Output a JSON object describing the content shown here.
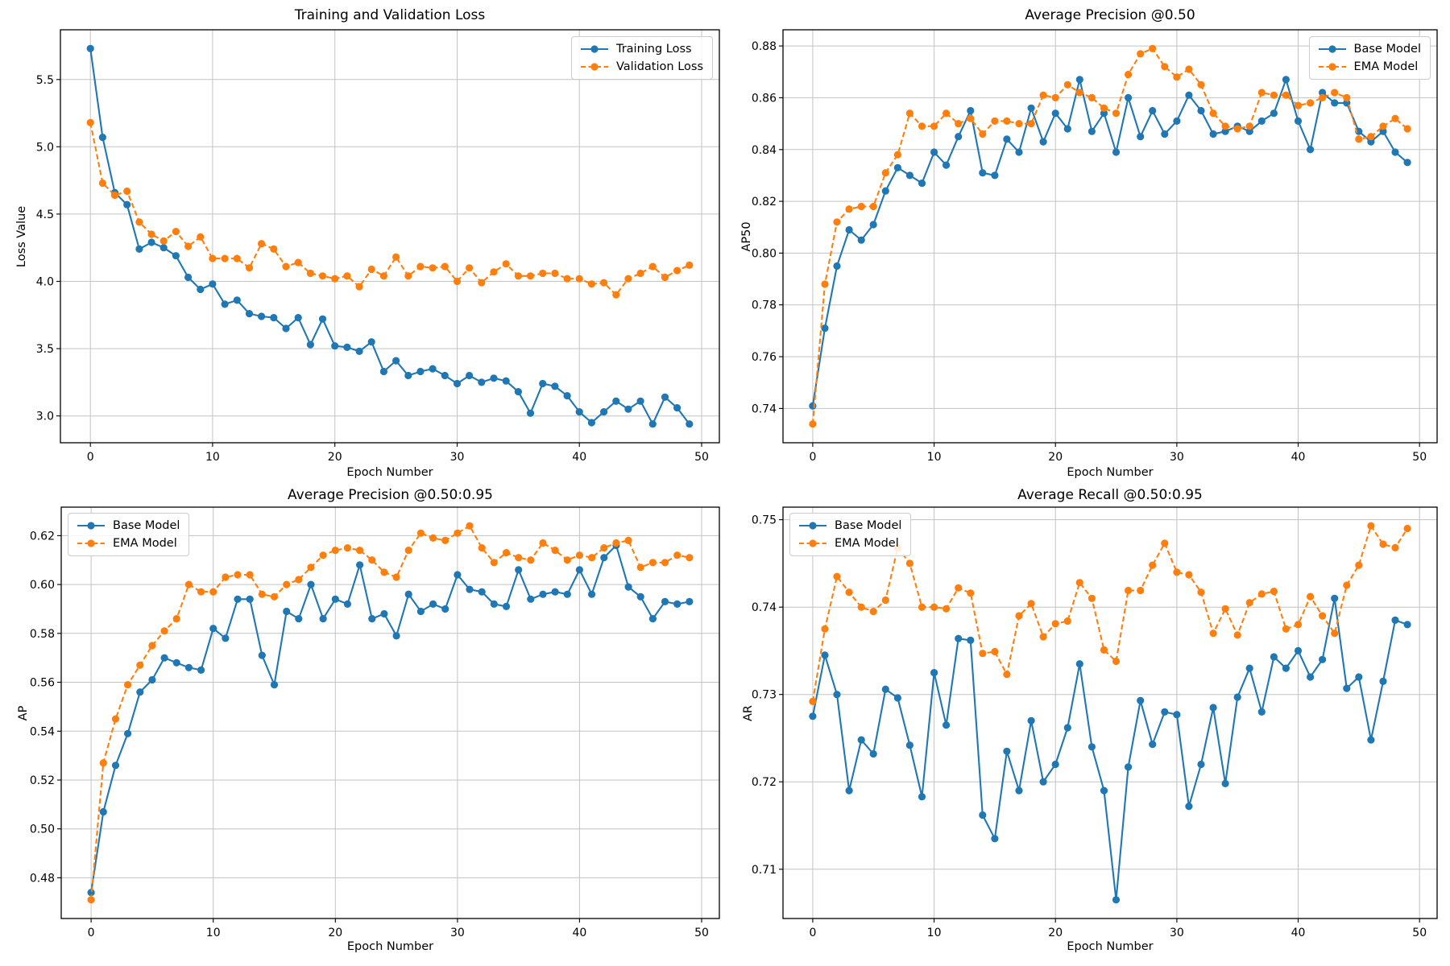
{
  "figure": {
    "background": "#ffffff"
  },
  "epochs": [
    0,
    1,
    2,
    3,
    4,
    5,
    6,
    7,
    8,
    9,
    10,
    11,
    12,
    13,
    14,
    15,
    16,
    17,
    18,
    19,
    20,
    21,
    22,
    23,
    24,
    25,
    26,
    27,
    28,
    29,
    30,
    31,
    32,
    33,
    34,
    35,
    36,
    37,
    38,
    39,
    40,
    41,
    42,
    43,
    44,
    45,
    46,
    47,
    48,
    49
  ],
  "shared": {
    "xtick_labels": [
      "0",
      "10",
      "20",
      "30",
      "40",
      "50"
    ],
    "xticks": [
      0,
      10,
      20,
      30,
      40,
      50
    ],
    "palette": {
      "blue": "#1f77b4",
      "orange": "#ff7f0e"
    }
  },
  "chart_data": [
    {
      "type": "line",
      "title": "Training and Validation Loss",
      "xlabel": "Epoch Number",
      "ylabel": "Loss Value",
      "xlim": [
        -2.45,
        51.45
      ],
      "ylim": [
        2.8005,
        5.8695
      ],
      "xticks": [
        0,
        10,
        20,
        30,
        40,
        50
      ],
      "xtick_labels": [
        "0",
        "10",
        "20",
        "30",
        "40",
        "50"
      ],
      "yticks": [
        3.0,
        3.5,
        4.0,
        4.5,
        5.0,
        5.5
      ],
      "ytick_labels": [
        "3.0",
        "3.5",
        "4.0",
        "4.5",
        "5.0",
        "5.5"
      ],
      "grid": true,
      "legend_position": "upper right",
      "series": [
        {
          "name": "Training Loss",
          "color": "#1f77b4",
          "line_style": "solid",
          "marker": "circle",
          "values": [
            5.73,
            5.07,
            4.66,
            4.57,
            4.24,
            4.29,
            4.25,
            4.19,
            4.03,
            3.94,
            3.98,
            3.83,
            3.86,
            3.76,
            3.74,
            3.73,
            3.65,
            3.73,
            3.53,
            3.72,
            3.52,
            3.51,
            3.48,
            3.55,
            3.33,
            3.41,
            3.3,
            3.33,
            3.35,
            3.3,
            3.24,
            3.3,
            3.25,
            3.28,
            3.26,
            3.18,
            3.02,
            3.24,
            3.22,
            3.15,
            3.03,
            2.95,
            3.03,
            3.11,
            3.05,
            3.11,
            2.94,
            3.14,
            3.06,
            2.94
          ]
        },
        {
          "name": "Validation Loss",
          "color": "#ff7f0e",
          "line_style": "dashed",
          "marker": "circle",
          "values": [
            5.18,
            4.73,
            4.64,
            4.67,
            4.44,
            4.35,
            4.3,
            4.37,
            4.26,
            4.33,
            4.17,
            4.17,
            4.17,
            4.1,
            4.28,
            4.24,
            4.11,
            4.14,
            4.06,
            4.04,
            4.02,
            4.04,
            3.96,
            4.09,
            4.04,
            4.18,
            4.04,
            4.11,
            4.1,
            4.11,
            4.0,
            4.1,
            3.99,
            4.07,
            4.13,
            4.04,
            4.04,
            4.06,
            4.06,
            4.02,
            4.02,
            3.98,
            3.99,
            3.9,
            4.02,
            4.06,
            4.11,
            4.03,
            4.08,
            4.12
          ]
        }
      ]
    },
    {
      "type": "line",
      "title": "Average Precision @0.50",
      "xlabel": "Epoch Number",
      "ylabel": "AP50",
      "xlim": [
        -2.45,
        51.45
      ],
      "ylim": [
        0.72675,
        0.88625
      ],
      "xticks": [
        0,
        10,
        20,
        30,
        40,
        50
      ],
      "xtick_labels": [
        "0",
        "10",
        "20",
        "30",
        "40",
        "50"
      ],
      "yticks": [
        0.74,
        0.76,
        0.78,
        0.8,
        0.82,
        0.84,
        0.86,
        0.88
      ],
      "ytick_labels": [
        "0.74",
        "0.76",
        "0.78",
        "0.80",
        "0.82",
        "0.84",
        "0.86",
        "0.88"
      ],
      "grid": true,
      "legend_position": "upper right",
      "series": [
        {
          "name": "Base Model",
          "color": "#1f77b4",
          "line_style": "solid",
          "marker": "circle",
          "values": [
            0.741,
            0.771,
            0.795,
            0.809,
            0.805,
            0.811,
            0.824,
            0.833,
            0.83,
            0.827,
            0.839,
            0.834,
            0.845,
            0.855,
            0.831,
            0.83,
            0.844,
            0.839,
            0.856,
            0.843,
            0.854,
            0.848,
            0.867,
            0.847,
            0.854,
            0.839,
            0.86,
            0.845,
            0.855,
            0.846,
            0.851,
            0.861,
            0.855,
            0.846,
            0.847,
            0.849,
            0.847,
            0.851,
            0.854,
            0.867,
            0.851,
            0.84,
            0.862,
            0.858,
            0.858,
            0.847,
            0.843,
            0.847,
            0.839,
            0.835
          ]
        },
        {
          "name": "EMA Model",
          "color": "#ff7f0e",
          "line_style": "dashed",
          "marker": "circle",
          "values": [
            0.734,
            0.788,
            0.812,
            0.817,
            0.818,
            0.818,
            0.831,
            0.838,
            0.854,
            0.849,
            0.849,
            0.854,
            0.85,
            0.852,
            0.846,
            0.851,
            0.851,
            0.85,
            0.85,
            0.861,
            0.86,
            0.865,
            0.862,
            0.86,
            0.856,
            0.854,
            0.869,
            0.877,
            0.879,
            0.872,
            0.868,
            0.871,
            0.865,
            0.854,
            0.849,
            0.848,
            0.849,
            0.862,
            0.861,
            0.861,
            0.857,
            0.858,
            0.86,
            0.862,
            0.86,
            0.844,
            0.845,
            0.849,
            0.852,
            0.848
          ]
        }
      ]
    },
    {
      "type": "line",
      "title": "Average Precision @0.50:0.95",
      "xlabel": "Epoch Number",
      "ylabel": "AP",
      "xlim": [
        -2.45,
        51.45
      ],
      "ylim": [
        0.46335,
        0.63165
      ],
      "xticks": [
        0,
        10,
        20,
        30,
        40,
        50
      ],
      "xtick_labels": [
        "0",
        "10",
        "20",
        "30",
        "40",
        "50"
      ],
      "yticks": [
        0.48,
        0.5,
        0.52,
        0.54,
        0.56,
        0.58,
        0.6,
        0.62
      ],
      "ytick_labels": [
        "0.48",
        "0.50",
        "0.52",
        "0.54",
        "0.56",
        "0.58",
        "0.60",
        "0.62"
      ],
      "grid": true,
      "legend_position": "upper left",
      "series": [
        {
          "name": "Base Model",
          "color": "#1f77b4",
          "line_style": "solid",
          "marker": "circle",
          "values": [
            0.474,
            0.507,
            0.526,
            0.539,
            0.556,
            0.561,
            0.57,
            0.568,
            0.566,
            0.565,
            0.582,
            0.578,
            0.594,
            0.594,
            0.571,
            0.559,
            0.589,
            0.586,
            0.6,
            0.586,
            0.594,
            0.592,
            0.608,
            0.586,
            0.588,
            0.579,
            0.596,
            0.589,
            0.592,
            0.59,
            0.604,
            0.598,
            0.597,
            0.592,
            0.591,
            0.606,
            0.594,
            0.596,
            0.597,
            0.596,
            0.606,
            0.596,
            0.611,
            0.616,
            0.599,
            0.595,
            0.586,
            0.593,
            0.592,
            0.593
          ]
        },
        {
          "name": "EMA Model",
          "color": "#ff7f0e",
          "line_style": "dashed",
          "marker": "circle",
          "values": [
            0.471,
            0.527,
            0.545,
            0.559,
            0.567,
            0.575,
            0.581,
            0.586,
            0.6,
            0.597,
            0.597,
            0.603,
            0.604,
            0.604,
            0.596,
            0.595,
            0.6,
            0.602,
            0.607,
            0.612,
            0.614,
            0.615,
            0.614,
            0.61,
            0.605,
            0.603,
            0.614,
            0.621,
            0.619,
            0.618,
            0.621,
            0.624,
            0.615,
            0.609,
            0.613,
            0.611,
            0.61,
            0.617,
            0.614,
            0.61,
            0.612,
            0.611,
            0.615,
            0.617,
            0.618,
            0.607,
            0.609,
            0.609,
            0.612,
            0.611
          ]
        }
      ]
    },
    {
      "type": "line",
      "title": "Average Recall @0.50:0.95",
      "xlabel": "Epoch Number",
      "ylabel": "AR",
      "xlim": [
        -2.45,
        51.45
      ],
      "ylim": [
        0.70436,
        0.75144
      ],
      "xticks": [
        0,
        10,
        20,
        30,
        40,
        50
      ],
      "xtick_labels": [
        "0",
        "10",
        "20",
        "30",
        "40",
        "50"
      ],
      "yticks": [
        0.71,
        0.72,
        0.73,
        0.74,
        0.75
      ],
      "ytick_labels": [
        "0.71",
        "0.72",
        "0.73",
        "0.74",
        "0.75"
      ],
      "grid": true,
      "legend_position": "upper left",
      "series": [
        {
          "name": "Base Model",
          "color": "#1f77b4",
          "line_style": "solid",
          "marker": "circle",
          "values": [
            0.7275,
            0.7345,
            0.73,
            0.719,
            0.7248,
            0.7232,
            0.7306,
            0.7296,
            0.7242,
            0.7183,
            0.7325,
            0.7265,
            0.7364,
            0.7362,
            0.7162,
            0.7135,
            0.7235,
            0.719,
            0.727,
            0.72,
            0.722,
            0.7262,
            0.7335,
            0.724,
            0.719,
            0.7065,
            0.7217,
            0.7293,
            0.7243,
            0.728,
            0.7277,
            0.7172,
            0.722,
            0.7285,
            0.7198,
            0.7297,
            0.733,
            0.728,
            0.7343,
            0.733,
            0.735,
            0.732,
            0.734,
            0.741,
            0.7307,
            0.732,
            0.7248,
            0.7315,
            0.7385,
            0.738
          ]
        },
        {
          "name": "EMA Model",
          "color": "#ff7f0e",
          "line_style": "dashed",
          "marker": "circle",
          "values": [
            0.7292,
            0.7375,
            0.7435,
            0.7417,
            0.74,
            0.7395,
            0.7408,
            0.7468,
            0.745,
            0.74,
            0.74,
            0.7398,
            0.7422,
            0.7416,
            0.7347,
            0.7349,
            0.7323,
            0.739,
            0.7404,
            0.7366,
            0.7381,
            0.7384,
            0.7428,
            0.741,
            0.7351,
            0.7338,
            0.7419,
            0.7419,
            0.7448,
            0.7473,
            0.744,
            0.7437,
            0.7417,
            0.737,
            0.7398,
            0.7368,
            0.7405,
            0.7415,
            0.7418,
            0.7375,
            0.738,
            0.7412,
            0.739,
            0.737,
            0.7425,
            0.7448,
            0.7493,
            0.7472,
            0.7468,
            0.749
          ]
        }
      ]
    }
  ]
}
